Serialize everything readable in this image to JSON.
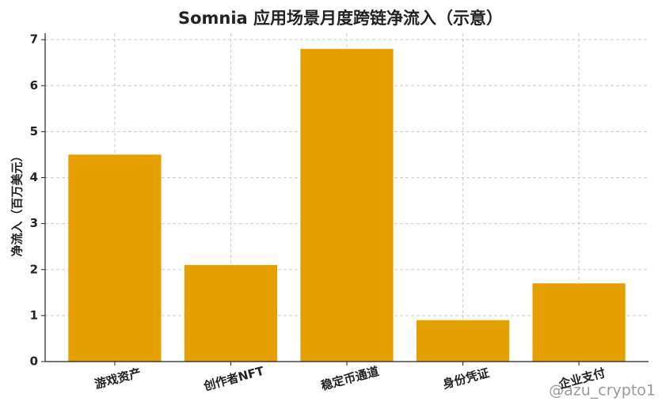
{
  "chart_data": {
    "type": "bar",
    "title": "Somnia 应用场景月度跨链净流入（示意）",
    "y_label": "净流入（百万美元）",
    "categories": [
      "游戏资产",
      "创作者NFT",
      "稳定币通道",
      "身份凭证",
      "企业支付"
    ],
    "values": [
      4.5,
      2.1,
      6.8,
      0.9,
      1.7
    ],
    "color": "#e69f00",
    "ylim": [
      0,
      7.14
    ],
    "yticks": [
      0,
      1,
      2,
      3,
      4,
      5,
      6,
      7
    ],
    "grid": true,
    "watermark": "@azu_crypto1"
  }
}
